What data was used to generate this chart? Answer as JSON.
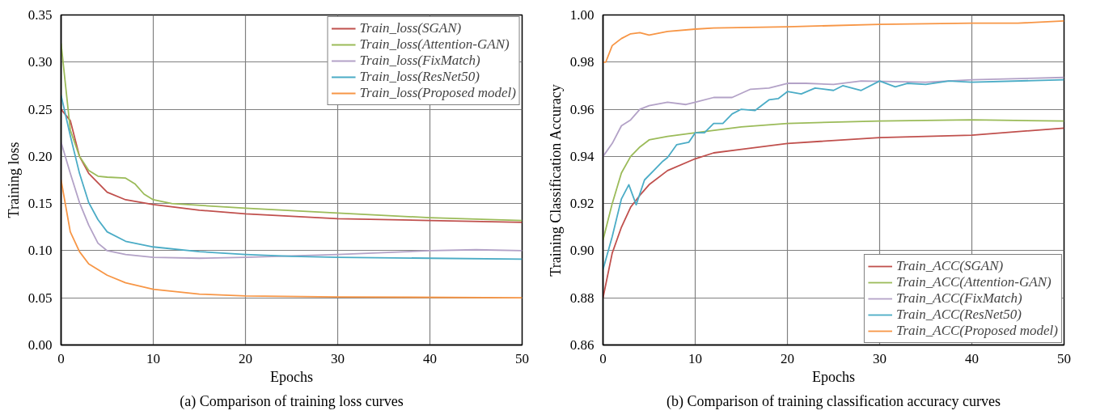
{
  "chart_data": [
    {
      "type": "line",
      "xlabel": "Epochs",
      "ylabel": "Training loss",
      "annotations": [
        "(a) Comparison of training loss curves"
      ],
      "xlim": [
        0,
        50
      ],
      "ylim": [
        0,
        0.35
      ],
      "xticks": [
        0,
        10,
        20,
        30,
        40,
        50
      ],
      "yticks": [
        {
          "value": 0,
          "label": "0.00"
        },
        {
          "value": 0.05,
          "label": "0.05"
        },
        {
          "value": 0.1,
          "label": "0.10"
        },
        {
          "value": 0.15,
          "label": "0.15"
        },
        {
          "value": 0.2,
          "label": "0.20"
        },
        {
          "value": 0.25,
          "label": "0.25"
        },
        {
          "value": 0.3,
          "label": "0.30"
        },
        {
          "value": 0.35,
          "label": "0.35"
        }
      ],
      "grid": true,
      "legend": "top right",
      "marker": "none",
      "line_style": "solid",
      "series": [
        {
          "name": "Train_loss(SGAN)",
          "color": "#c0504d",
          "x": [
            0,
            1,
            2,
            3,
            5,
            7,
            10,
            15,
            20,
            30,
            40,
            50
          ],
          "values": [
            0.25,
            0.238,
            0.2,
            0.182,
            0.162,
            0.154,
            0.149,
            0.143,
            0.139,
            0.134,
            0.132,
            0.13
          ]
        },
        {
          "name": "Train_loss(Attention-GAN)",
          "color": "#9bbb59",
          "x": [
            0,
            1,
            2,
            3,
            4,
            5,
            7,
            8,
            9,
            10,
            12,
            20,
            30,
            40,
            50
          ],
          "values": [
            0.32,
            0.228,
            0.2,
            0.185,
            0.179,
            0.178,
            0.177,
            0.171,
            0.16,
            0.154,
            0.15,
            0.145,
            0.14,
            0.135,
            0.132
          ]
        },
        {
          "name": "Train_loss(FixMatch)",
          "color": "#b3a2c7",
          "x": [
            0,
            1,
            2,
            3,
            4,
            5,
            7,
            10,
            15,
            20,
            30,
            40,
            45,
            50
          ],
          "values": [
            0.215,
            0.182,
            0.151,
            0.127,
            0.108,
            0.1,
            0.096,
            0.093,
            0.092,
            0.093,
            0.096,
            0.1,
            0.101,
            0.1
          ]
        },
        {
          "name": "Train_loss(ResNet50)",
          "color": "#4bacc6",
          "x": [
            0,
            1,
            2,
            3,
            4,
            5,
            7,
            10,
            15,
            20,
            25,
            30,
            40,
            50
          ],
          "values": [
            0.265,
            0.222,
            0.182,
            0.151,
            0.133,
            0.12,
            0.11,
            0.104,
            0.099,
            0.096,
            0.094,
            0.093,
            0.092,
            0.091
          ]
        },
        {
          "name": "Train_loss(Proposed model)",
          "color": "#f79646",
          "x": [
            0,
            1,
            2,
            3,
            5,
            7,
            10,
            15,
            20,
            30,
            50
          ],
          "values": [
            0.175,
            0.12,
            0.099,
            0.086,
            0.074,
            0.066,
            0.059,
            0.054,
            0.052,
            0.051,
            0.05
          ]
        }
      ]
    },
    {
      "type": "line",
      "xlabel": "Epochs",
      "ylabel": "Training Classification Accuracy",
      "annotations": [
        "(b) Comparison of training classification accuracy curves"
      ],
      "xlim": [
        0,
        50
      ],
      "ylim": [
        0.86,
        1.0
      ],
      "xticks": [
        0,
        10,
        20,
        30,
        40,
        50
      ],
      "yticks": [
        {
          "value": 0.86,
          "label": "0.86"
        },
        {
          "value": 0.88,
          "label": "0.88"
        },
        {
          "value": 0.9,
          "label": "0.90"
        },
        {
          "value": 0.92,
          "label": "0.92"
        },
        {
          "value": 0.94,
          "label": "0.94"
        },
        {
          "value": 0.96,
          "label": "0.96"
        },
        {
          "value": 0.98,
          "label": "0.98"
        },
        {
          "value": 1.0,
          "label": "1.00"
        }
      ],
      "grid": true,
      "legend": "bottom right",
      "marker": "none",
      "line_style": "solid",
      "series": [
        {
          "name": "Train_ACC(SGAN)",
          "color": "#c0504d",
          "x": [
            0,
            1,
            2,
            3,
            4,
            5,
            7,
            10,
            12,
            15,
            20,
            30,
            40,
            50
          ],
          "values": [
            0.88,
            0.899,
            0.91,
            0.9185,
            0.9235,
            0.928,
            0.934,
            0.939,
            0.9415,
            0.943,
            0.9455,
            0.948,
            0.949,
            0.952
          ]
        },
        {
          "name": "Train_ACC(Attention-GAN)",
          "color": "#9bbb59",
          "x": [
            0,
            1,
            2,
            3,
            4,
            5,
            7,
            10,
            15,
            20,
            30,
            40,
            50
          ],
          "values": [
            0.9045,
            0.92,
            0.933,
            0.94,
            0.944,
            0.947,
            0.9485,
            0.95,
            0.9525,
            0.954,
            0.955,
            0.9555,
            0.955
          ]
        },
        {
          "name": "Train_ACC(FixMatch)",
          "color": "#b3a2c7",
          "x": [
            0,
            1,
            2,
            3,
            4,
            5,
            7,
            9,
            10,
            12,
            14,
            16,
            18,
            20,
            22,
            25,
            28,
            35,
            40,
            50
          ],
          "values": [
            0.94,
            0.9455,
            0.953,
            0.9555,
            0.96,
            0.9615,
            0.963,
            0.962,
            0.963,
            0.965,
            0.965,
            0.9685,
            0.969,
            0.971,
            0.971,
            0.9705,
            0.972,
            0.9715,
            0.9725,
            0.9735
          ]
        },
        {
          "name": "Train_ACC(ResNet50)",
          "color": "#4bacc6",
          "x": [
            0,
            1,
            2,
            2.8,
            3.6,
            4.5,
            5.5,
            6.5,
            7,
            8,
            9.3,
            10,
            11,
            12,
            13,
            14,
            15,
            16.5,
            18,
            19,
            20,
            21.5,
            23,
            25,
            26,
            28,
            30,
            31.7,
            33,
            35,
            37.5,
            40,
            50
          ],
          "values": [
            0.892,
            0.906,
            0.922,
            0.928,
            0.9195,
            0.93,
            0.934,
            0.938,
            0.9395,
            0.945,
            0.946,
            0.95,
            0.95,
            0.954,
            0.954,
            0.958,
            0.96,
            0.9595,
            0.964,
            0.9645,
            0.9675,
            0.9665,
            0.969,
            0.968,
            0.97,
            0.968,
            0.972,
            0.9695,
            0.971,
            0.9705,
            0.972,
            0.9715,
            0.9725
          ]
        },
        {
          "name": "Train_ACC(Proposed model)",
          "color": "#f79646",
          "x": [
            0,
            0.3,
            1,
            2,
            3,
            4,
            5,
            7,
            10,
            12,
            20,
            30,
            40,
            45,
            50
          ],
          "values": [
            0.98,
            0.98,
            0.987,
            0.99,
            0.992,
            0.9925,
            0.9915,
            0.993,
            0.994,
            0.9945,
            0.995,
            0.996,
            0.9965,
            0.9965,
            0.9975
          ]
        }
      ]
    }
  ]
}
